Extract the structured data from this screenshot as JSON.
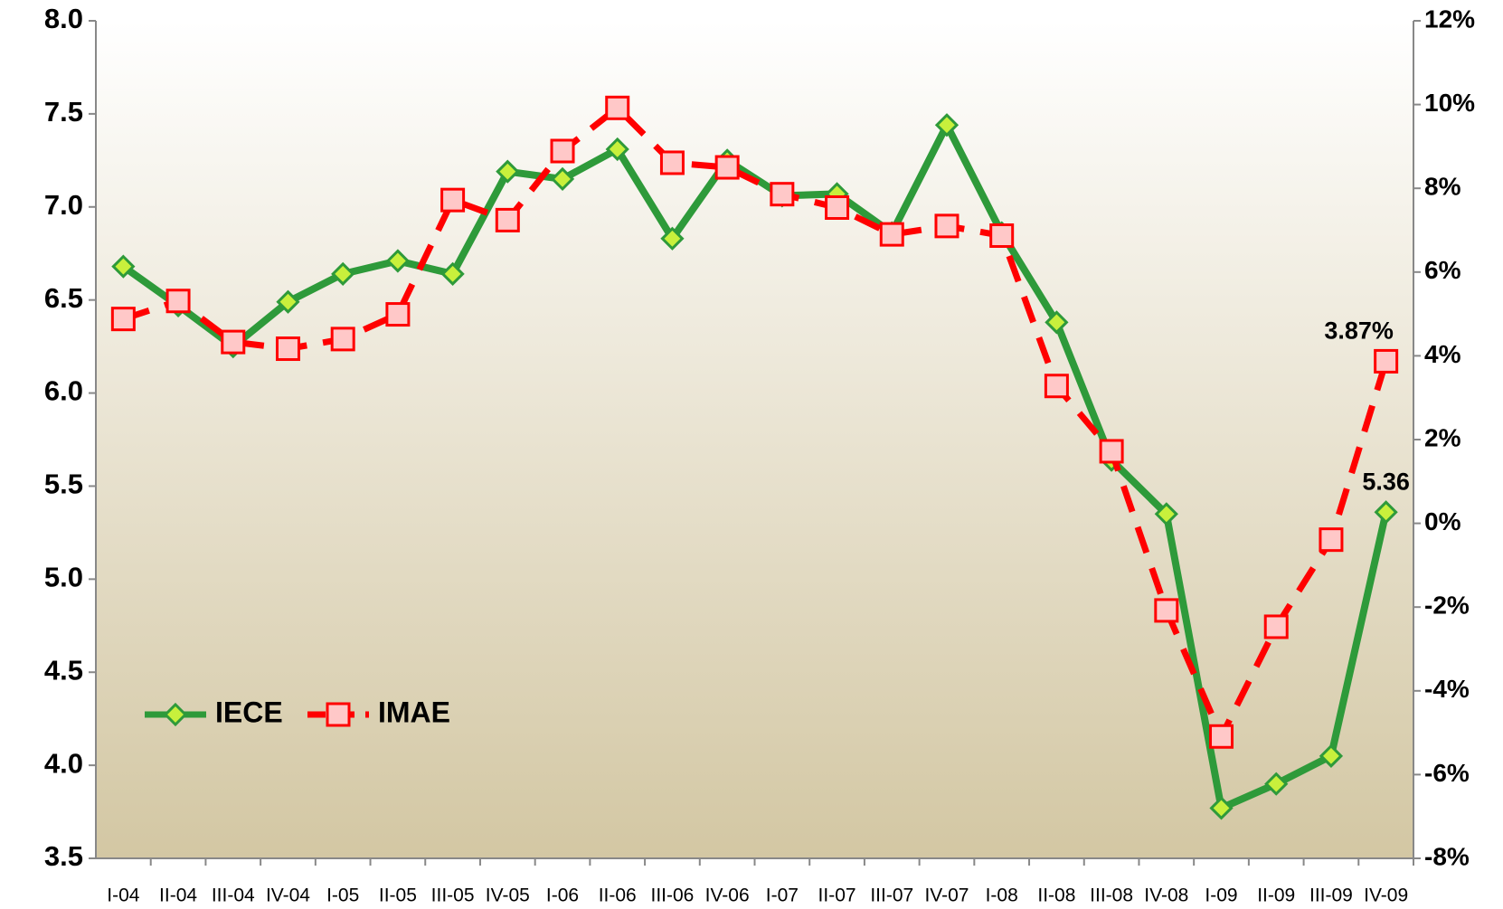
{
  "chart_data": {
    "type": "line",
    "categories": [
      "I-04",
      "II-04",
      "III-04",
      "IV-04",
      "I-05",
      "II-05",
      "III-05",
      "IV-05",
      "I-06",
      "II-06",
      "III-06",
      "IV-06",
      "I-07",
      "II-07",
      "III-07",
      "IV-07",
      "I-08",
      "II-08",
      "III-08",
      "IV-08",
      "I-09",
      "II-09",
      "III-09",
      "IV-09"
    ],
    "series": [
      {
        "name": "IECE",
        "color": "#2e9a3a",
        "marker_color": "#c8f03c",
        "axis": "y",
        "values": [
          6.68,
          6.47,
          6.25,
          6.49,
          6.64,
          6.71,
          6.64,
          7.19,
          7.15,
          7.31,
          6.83,
          7.25,
          7.06,
          7.07,
          6.86,
          7.44,
          6.86,
          6.38,
          5.64,
          5.35,
          3.77,
          3.9,
          4.05,
          5.36
        ],
        "value_labels": [
          null,
          null,
          null,
          null,
          null,
          null,
          null,
          null,
          null,
          null,
          null,
          null,
          null,
          null,
          null,
          null,
          null,
          null,
          null,
          null,
          null,
          null,
          null,
          "5.36"
        ]
      },
      {
        "name": "IMAE",
        "color": "#ff0000",
        "marker_color": "#ffc8c8",
        "axis": "y2",
        "values": [
          4.88,
          5.31,
          4.33,
          4.17,
          4.4,
          4.99,
          7.72,
          7.24,
          8.89,
          9.92,
          8.61,
          8.5,
          7.86,
          7.54,
          6.9,
          7.1,
          6.87,
          3.28,
          1.72,
          -2.08,
          -5.09,
          -2.47,
          -0.39,
          3.87
        ],
        "value_labels": [
          null,
          null,
          null,
          null,
          null,
          null,
          null,
          null,
          null,
          null,
          null,
          null,
          null,
          null,
          null,
          null,
          null,
          null,
          null,
          null,
          null,
          null,
          null,
          "3.87%"
        ]
      }
    ],
    "ylim": [
      3.5,
      8.0
    ],
    "yticks": [
      3.5,
      {
        "value": 4,
        "label": "4.0"
      },
      4.5,
      {
        "value": 5,
        "label": "5.0"
      },
      5.5,
      {
        "value": 6,
        "label": "6.0"
      },
      6.5,
      {
        "value": 7,
        "label": "7.0"
      },
      7.5,
      {
        "value": 8,
        "label": "8.0"
      }
    ],
    "y2lim": [
      -8,
      12
    ],
    "y2ticks": [
      {
        "value": -8,
        "label": "-8%"
      },
      {
        "value": -6,
        "label": "-6%"
      },
      {
        "value": -4,
        "label": "-4%"
      },
      {
        "value": -2,
        "label": "-2%"
      },
      {
        "value": 0,
        "label": "0%"
      },
      {
        "value": 2,
        "label": "2%"
      },
      {
        "value": 4,
        "label": "4%"
      },
      {
        "value": 6,
        "label": "6%"
      },
      {
        "value": 8,
        "label": "8%"
      },
      {
        "value": 10,
        "label": "10%"
      },
      {
        "value": 12,
        "label": "12%"
      }
    ],
    "grid": false,
    "legend": "lower left"
  }
}
